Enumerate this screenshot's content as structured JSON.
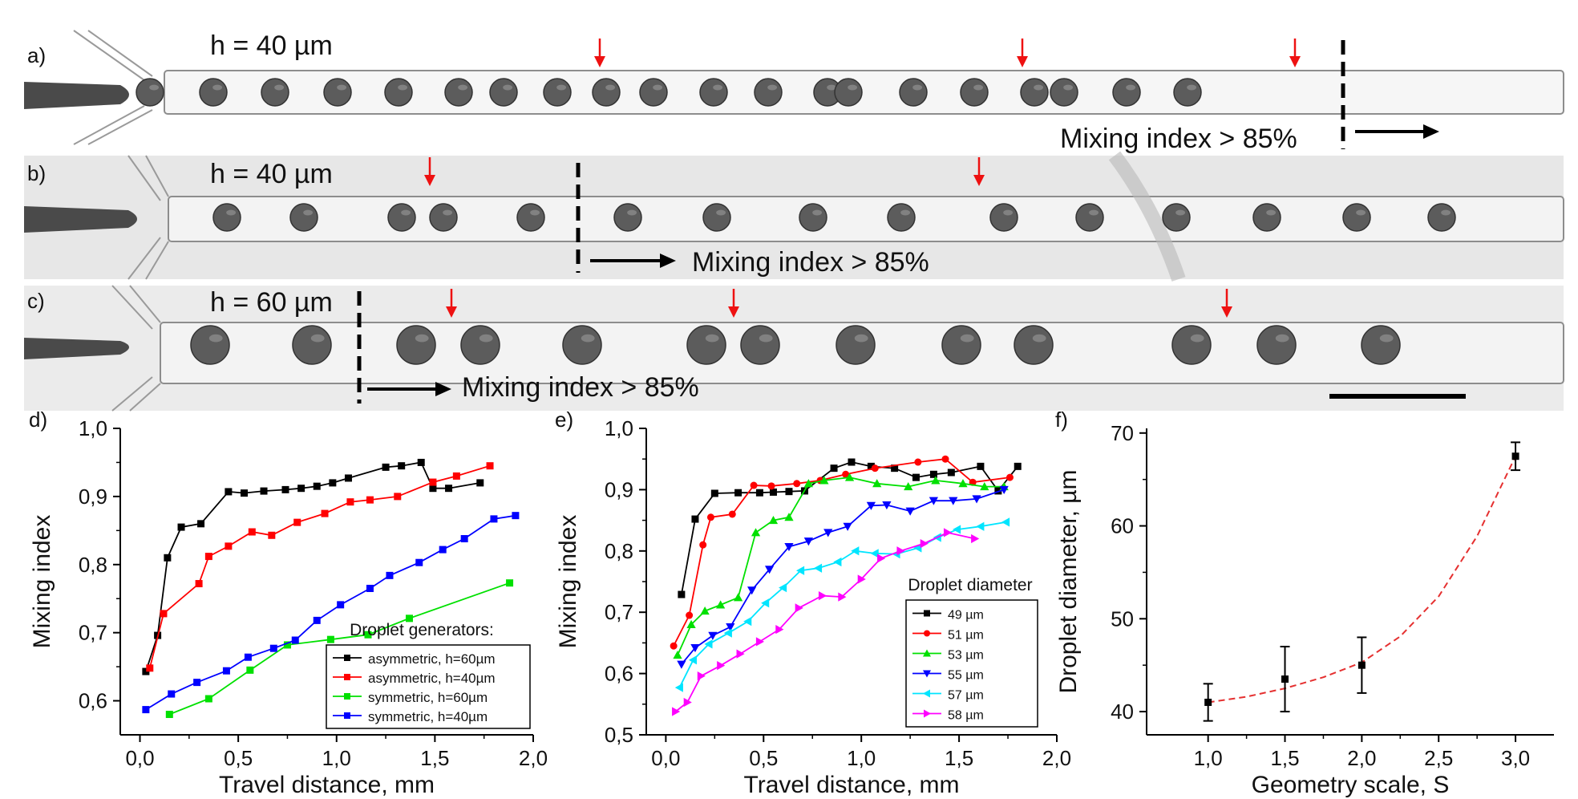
{
  "panels": {
    "a": {
      "letter": "a)",
      "height_label": "h = 40 µm",
      "mixing_label": "Mixing index > 85%",
      "droplets": 20,
      "arrow_count": 3
    },
    "b": {
      "letter": "b)",
      "height_label": "h = 40 µm",
      "mixing_label": "Mixing index > 85%",
      "droplets": 15,
      "arrow_count": 2
    },
    "c": {
      "letter": "c)",
      "height_label": "h = 60 µm",
      "mixing_label": "Mixing index > 85%",
      "droplets": 13,
      "arrow_count": 3
    }
  },
  "colors": {
    "black": "#000000",
    "red": "#ff0000",
    "green": "#00e000",
    "blue": "#0000ff",
    "cyan": "#00e5ff",
    "magenta": "#ff00ff",
    "fit": "#e53030",
    "arrow_red": "#ee1111",
    "micro_bg": "#e9e9e9",
    "channel": "#f7f7f7",
    "droplet": "#5c5c5c"
  },
  "chart_data": [
    {
      "type": "line",
      "letter": "d)",
      "xlabel": "Travel distance, mm",
      "ylabel": "Mixing index",
      "xlim": [
        -0.1,
        2.0
      ],
      "ylim": [
        0.55,
        1.0
      ],
      "xticks": [
        0.0,
        0.5,
        1.0,
        1.5,
        2.0
      ],
      "xtick_labels": [
        "0,0",
        "0,5",
        "1,0",
        "1,5",
        "2,0"
      ],
      "yticks": [
        0.6,
        0.7,
        0.8,
        0.9,
        1.0
      ],
      "ytick_labels": [
        "0,6",
        "0,7",
        "0,8",
        "0,9",
        "1,0"
      ],
      "legend_title": "Droplet generators:",
      "legend_position": "bottom-right",
      "series": [
        {
          "name": "asymmetric, h=60µm",
          "color": "#000000",
          "marker": "square",
          "x": [
            0.03,
            0.09,
            0.14,
            0.21,
            0.31,
            0.45,
            0.53,
            0.63,
            0.74,
            0.82,
            0.9,
            0.98,
            1.06,
            1.25,
            1.33,
            1.43,
            1.49,
            1.57,
            1.73
          ],
          "y": [
            0.643,
            0.696,
            0.81,
            0.855,
            0.86,
            0.907,
            0.905,
            0.908,
            0.91,
            0.912,
            0.915,
            0.92,
            0.927,
            0.943,
            0.945,
            0.95,
            0.912,
            0.912,
            0.92
          ]
        },
        {
          "name": "asymmetric, h=40µm",
          "color": "#ff0000",
          "marker": "square",
          "x": [
            0.05,
            0.12,
            0.3,
            0.35,
            0.45,
            0.57,
            0.67,
            0.8,
            0.94,
            1.07,
            1.17,
            1.31,
            1.49,
            1.61,
            1.78
          ],
          "y": [
            0.648,
            0.728,
            0.772,
            0.812,
            0.827,
            0.848,
            0.843,
            0.862,
            0.875,
            0.892,
            0.895,
            0.9,
            0.921,
            0.93,
            0.945
          ]
        },
        {
          "name": "symmetric, h=60µm",
          "color": "#00e000",
          "marker": "square",
          "x": [
            0.15,
            0.35,
            0.56,
            0.75,
            0.97,
            1.16,
            1.37,
            1.88
          ],
          "y": [
            0.58,
            0.603,
            0.645,
            0.682,
            0.69,
            0.697,
            0.721,
            0.773
          ]
        },
        {
          "name": "symmetric, h=40µm",
          "color": "#0000ff",
          "marker": "square",
          "x": [
            0.03,
            0.16,
            0.29,
            0.44,
            0.55,
            0.68,
            0.79,
            0.9,
            1.02,
            1.17,
            1.27,
            1.42,
            1.54,
            1.65,
            1.8,
            1.91
          ],
          "y": [
            0.587,
            0.61,
            0.627,
            0.644,
            0.664,
            0.677,
            0.689,
            0.718,
            0.741,
            0.765,
            0.784,
            0.803,
            0.822,
            0.838,
            0.867,
            0.872
          ]
        }
      ]
    },
    {
      "type": "line",
      "letter": "e)",
      "xlabel": "Travel distance, mm",
      "ylabel": "Mixing index",
      "xlim": [
        -0.1,
        2.0
      ],
      "ylim": [
        0.5,
        1.0
      ],
      "xticks": [
        0.0,
        0.5,
        1.0,
        1.5,
        2.0
      ],
      "xtick_labels": [
        "0,0",
        "0,5",
        "1,0",
        "1,5",
        "2,0"
      ],
      "yticks": [
        0.5,
        0.6,
        0.7,
        0.8,
        0.9,
        1.0
      ],
      "ytick_labels": [
        "0,5",
        "0,6",
        "0,7",
        "0,8",
        "0,9",
        "1,0"
      ],
      "legend_title": "Droplet diameter",
      "legend_position": "bottom-right",
      "series": [
        {
          "name": "49 µm",
          "color": "#000000",
          "marker": "square",
          "x": [
            0.08,
            0.15,
            0.25,
            0.37,
            0.48,
            0.55,
            0.63,
            0.71,
            0.86,
            0.95,
            1.05,
            1.17,
            1.28,
            1.37,
            1.46,
            1.61,
            1.7,
            1.8
          ],
          "y": [
            0.729,
            0.852,
            0.894,
            0.895,
            0.895,
            0.896,
            0.897,
            0.898,
            0.935,
            0.945,
            0.938,
            0.935,
            0.92,
            0.925,
            0.928,
            0.938,
            0.898,
            0.938
          ]
        },
        {
          "name": "51 µm",
          "color": "#ff0000",
          "marker": "circle",
          "x": [
            0.04,
            0.12,
            0.19,
            0.23,
            0.34,
            0.45,
            0.54,
            0.67,
            0.79,
            0.92,
            1.07,
            1.29,
            1.43,
            1.57,
            1.76
          ],
          "y": [
            0.645,
            0.695,
            0.81,
            0.855,
            0.86,
            0.907,
            0.906,
            0.91,
            0.915,
            0.925,
            0.935,
            0.945,
            0.95,
            0.912,
            0.92
          ]
        },
        {
          "name": "53 µm",
          "color": "#00e000",
          "marker": "triangle-up",
          "x": [
            0.06,
            0.13,
            0.2,
            0.28,
            0.37,
            0.46,
            0.55,
            0.63,
            0.73,
            0.81,
            0.94,
            1.08,
            1.24,
            1.38,
            1.52,
            1.63,
            1.73
          ],
          "y": [
            0.63,
            0.68,
            0.702,
            0.712,
            0.724,
            0.83,
            0.85,
            0.855,
            0.91,
            0.915,
            0.92,
            0.91,
            0.905,
            0.915,
            0.91,
            0.905,
            0.905
          ]
        },
        {
          "name": "55 µm",
          "color": "#0000ff",
          "marker": "triangle-down",
          "x": [
            0.08,
            0.15,
            0.24,
            0.33,
            0.44,
            0.53,
            0.63,
            0.73,
            0.83,
            0.93,
            1.05,
            1.13,
            1.25,
            1.37,
            1.47,
            1.59,
            1.73
          ],
          "y": [
            0.615,
            0.642,
            0.662,
            0.676,
            0.736,
            0.77,
            0.807,
            0.816,
            0.83,
            0.84,
            0.874,
            0.875,
            0.865,
            0.882,
            0.882,
            0.885,
            0.9
          ]
        },
        {
          "name": "57 µm",
          "color": "#00e5ff",
          "marker": "triangle-left",
          "x": [
            0.07,
            0.14,
            0.22,
            0.32,
            0.42,
            0.51,
            0.6,
            0.69,
            0.78,
            0.88,
            0.97,
            1.07,
            1.18,
            1.29,
            1.39,
            1.49,
            1.61,
            1.74
          ],
          "y": [
            0.577,
            0.622,
            0.648,
            0.666,
            0.685,
            0.715,
            0.74,
            0.768,
            0.772,
            0.782,
            0.8,
            0.796,
            0.795,
            0.805,
            0.822,
            0.835,
            0.84,
            0.847
          ]
        },
        {
          "name": "58 µm",
          "color": "#ff00ff",
          "marker": "triangle-right",
          "x": [
            0.05,
            0.11,
            0.18,
            0.28,
            0.38,
            0.48,
            0.58,
            0.68,
            0.8,
            0.9,
            1.0,
            1.1,
            1.2,
            1.32,
            1.44,
            1.58
          ],
          "y": [
            0.538,
            0.553,
            0.596,
            0.613,
            0.632,
            0.652,
            0.672,
            0.707,
            0.727,
            0.725,
            0.754,
            0.788,
            0.8,
            0.812,
            0.83,
            0.82
          ]
        }
      ]
    },
    {
      "type": "scatter",
      "letter": "f)",
      "xlabel": "Geometry scale, S",
      "ylabel": "Droplet diameter, µm",
      "xlim": [
        0.6,
        3.25
      ],
      "ylim": [
        37.5,
        70.5
      ],
      "xticks": [
        1.0,
        1.5,
        2.0,
        2.5,
        3.0
      ],
      "xtick_labels": [
        "1,0",
        "1,5",
        "2,0",
        "2,5",
        "3,0"
      ],
      "yticks": [
        40,
        50,
        60,
        70
      ],
      "ytick_labels": [
        "40",
        "50",
        "60",
        "70"
      ],
      "series": [
        {
          "color": "#000000",
          "marker": "square",
          "x": [
            1.0,
            1.5,
            2.0,
            3.0
          ],
          "y": [
            41.0,
            43.5,
            45.0,
            67.5
          ],
          "err": [
            2.0,
            3.5,
            3.0,
            1.5
          ]
        }
      ],
      "fit": {
        "style": "dashed",
        "color": "#e53030",
        "x": [
          1.0,
          1.25,
          1.5,
          1.75,
          2.0,
          2.25,
          2.5,
          2.75,
          3.0
        ],
        "y": [
          41.0,
          41.6,
          42.5,
          43.7,
          45.3,
          48.1,
          52.4,
          58.9,
          67.5
        ]
      }
    }
  ]
}
